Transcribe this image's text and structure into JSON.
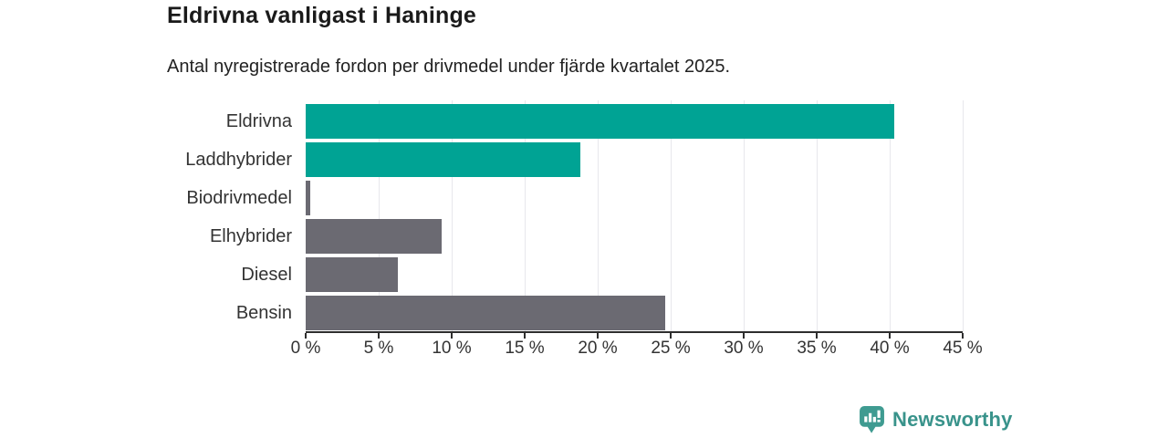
{
  "header": {
    "title": "Eldrivna vanligast i Haninge",
    "subtitle": "Antal nyregistrerade fordon per drivmedel under fjärde kvartalet 2025."
  },
  "chart_data": {
    "type": "bar",
    "orientation": "horizontal",
    "title": "Eldrivna vanligast i Haninge",
    "subtitle": "Antal nyregistrerade fordon per drivmedel under fjärde kvartalet 2025.",
    "categories": [
      "Eldrivna",
      "Laddhybrider",
      "Biodrivmedel",
      "Elhybrider",
      "Diesel",
      "Bensin"
    ],
    "values": [
      40.3,
      18.8,
      0.3,
      9.3,
      6.3,
      24.6
    ],
    "unit": "%",
    "bar_colors": [
      "#00a394",
      "#00a394",
      "#6b6a72",
      "#6b6a72",
      "#6b6a72",
      "#6b6a72"
    ],
    "highlight_color": "#00a394",
    "default_color": "#6b6a72",
    "xlim": [
      0,
      45
    ],
    "x_ticks": [
      0,
      5,
      10,
      15,
      20,
      25,
      30,
      35,
      40,
      45
    ],
    "x_tick_labels": [
      "0 %",
      "5 %",
      "10 %",
      "15 %",
      "20 %",
      "25 %",
      "30 %",
      "35 %",
      "40 %",
      "45 %"
    ],
    "grid": "vertical-only",
    "grid_color": "#e7e7ec",
    "axis_color": "#2e2e2e",
    "legend": "none"
  },
  "branding": {
    "logo_text": "Newsworthy",
    "logo_color": "#39938b",
    "icon_color": "#3f9b91",
    "icon": "newsworthy-speech-bubble-barchart-icon"
  }
}
